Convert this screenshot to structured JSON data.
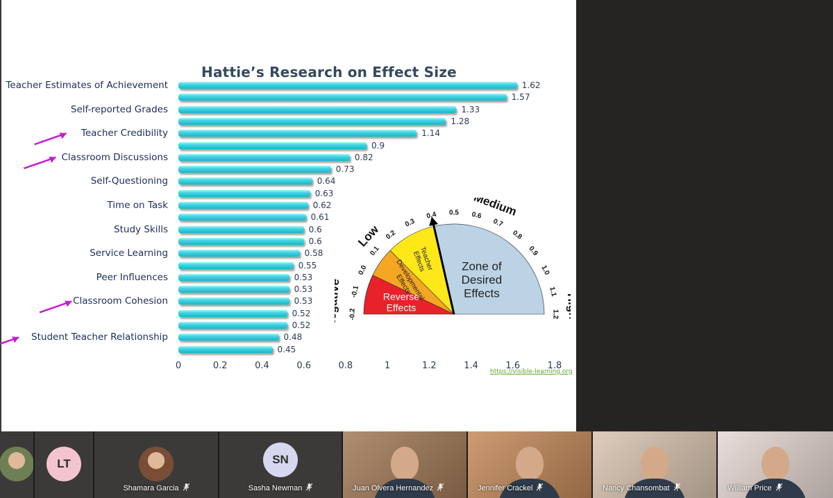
{
  "meeting": {
    "participants": [
      {
        "name": "",
        "initials": ""
      },
      {
        "name": "",
        "initials": "LT"
      },
      {
        "name": "Shamara Garcia",
        "initials": ""
      },
      {
        "name": "Sasha Newman",
        "initials": "SN"
      },
      {
        "name": "Juan Olvera Hernandez",
        "initials": ""
      },
      {
        "name": "Jennifer Crackel",
        "initials": ""
      },
      {
        "name": "Nancy Chansombat",
        "initials": ""
      },
      {
        "name": "William Price",
        "initials": ""
      }
    ],
    "mic_icon": "mic-muted-icon"
  },
  "chart_data": {
    "type": "bar",
    "orientation": "horizontal",
    "title": "Hattie’s Research on Effect Size",
    "category_labels": [
      "Teacher Estimates of Achievement",
      "Self-reported Grades",
      "Teacher Credibility",
      "Classroom Discussions",
      "Self-Questioning",
      "Time on Task",
      "Study Skills",
      "Service Learning",
      "Peer Influences",
      "Classroom Cohesion",
      "Student Teacher Relationship"
    ],
    "values": [
      1.62,
      1.57,
      1.33,
      1.28,
      1.14,
      0.9,
      0.82,
      0.73,
      0.64,
      0.63,
      0.62,
      0.61,
      0.6,
      0.6,
      0.58,
      0.55,
      0.53,
      0.53,
      0.53,
      0.52,
      0.52,
      0.48,
      0.45
    ],
    "value_labels": [
      "1.62",
      "1.57",
      "1.33",
      "1.28",
      "1.14",
      "0.9",
      "0.82",
      "0.73",
      "0.64",
      "0.63",
      "0.62",
      "0.61",
      "0.6",
      "0.6",
      "0.58",
      "0.55",
      "0.53",
      "0.53",
      "0.53",
      "0.52",
      "0.52",
      "0.48",
      "0.45"
    ],
    "label_row_index": [
      0,
      2,
      4,
      6,
      8,
      10,
      12,
      14,
      16,
      18,
      21
    ],
    "xlim": [
      0,
      1.8
    ],
    "xticks": [
      "0",
      "0.2",
      "0.4",
      "0.6",
      "0.8",
      "1",
      "1.2",
      "1.4",
      "1.6",
      "1.8"
    ],
    "source": "https://visible-learning.org",
    "bar_color": "#2ec8d8",
    "highlighted_categories": [
      "Teacher Credibility",
      "Classroom Discussions",
      "Classroom Cohesion",
      "Student Teacher Relationship"
    ],
    "highlight_color": "#c41bd6"
  },
  "gauge": {
    "zone_labels": {
      "negative": "Negative",
      "low": "Low",
      "medium": "Medium",
      "high": "High"
    },
    "segments": [
      {
        "label_lines": [
          "Reverse",
          "Effects"
        ],
        "color": "#e8222b",
        "from": -0.2,
        "to": 0.0
      },
      {
        "label_lines": [
          "Developmental",
          "Effects"
        ],
        "color": "#f5a623",
        "from": 0.0,
        "to": 0.15
      },
      {
        "label_lines": [
          "Teacher",
          "Effects"
        ],
        "color": "#ffe81a",
        "from": 0.15,
        "to": 0.4
      },
      {
        "label_lines": [
          "Zone of",
          "Desired",
          "Effects"
        ],
        "color": "#bcd3e6",
        "from": 0.4,
        "to": 1.2
      }
    ],
    "ticks": [
      "-0.2",
      "-0.1",
      "0.0",
      "0.1",
      "0.2",
      "0.3",
      "0.4",
      "0.5",
      "0.6",
      "0.7",
      "0.8",
      "0.9",
      "1.0",
      "1.1",
      "1.2"
    ],
    "pointer_value": 0.4
  }
}
